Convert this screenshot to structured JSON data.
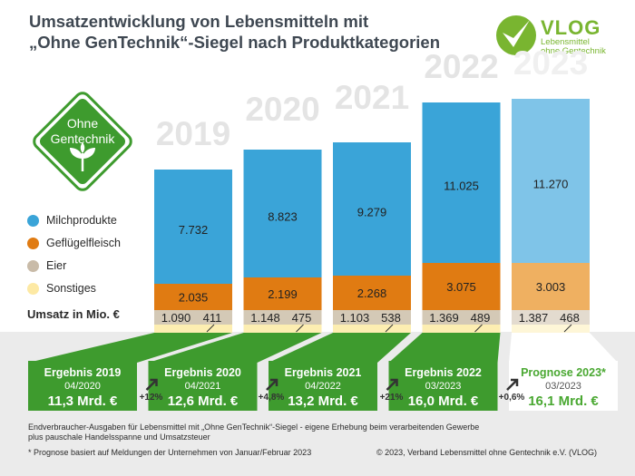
{
  "header": {
    "title_line1": "Umsatzentwicklung von Lebensmitteln mit",
    "title_line2": "„Ohne GenTechnik“-Siegel nach Produktkategorien"
  },
  "logo": {
    "name": "VLOG",
    "sub_line1": "Lebensmittel",
    "sub_line2": "ohne Gentechnik"
  },
  "seal": {
    "line1": "Ohne",
    "line2": "Gentechnik"
  },
  "legend": {
    "items": [
      {
        "label": "Milchprodukte",
        "color": "#3aa4d8"
      },
      {
        "label": "Geflügelfleisch",
        "color": "#e07b12"
      },
      {
        "label": "Eier",
        "color": "#c9bba8"
      },
      {
        "label": "Sonstiges",
        "color": "#fde9a4"
      }
    ],
    "unit_label": "Umsatz in Mio. €"
  },
  "chart_data": {
    "type": "bar",
    "stacked": true,
    "categories": [
      "2019",
      "2020",
      "2021",
      "2022",
      "2023"
    ],
    "series": [
      {
        "name": "Milchprodukte",
        "values": [
          7732,
          8823,
          9279,
          11025,
          11270
        ],
        "labels": [
          "7.732",
          "8.823",
          "9.279",
          "11.025",
          "11.270"
        ]
      },
      {
        "name": "Geflügelfleisch",
        "values": [
          2035,
          2199,
          2268,
          3075,
          3003
        ],
        "labels": [
          "2.035",
          "2.199",
          "2.268",
          "3.075",
          "3.003"
        ]
      },
      {
        "name": "Eier",
        "values": [
          1090,
          1148,
          1103,
          1369,
          1387
        ],
        "labels": [
          "1.090",
          "1.148",
          "1.103",
          "1.369",
          "1.387"
        ]
      },
      {
        "name": "Sonstiges",
        "values": [
          411,
          475,
          538,
          489,
          468
        ],
        "labels": [
          "411",
          "475",
          "538",
          "489",
          "468"
        ]
      }
    ],
    "forecast_category": "2023",
    "ylabel": "Umsatz in Mio. €",
    "colors": {
      "milch": "#3aa4d8",
      "gefluegel": "#e07b12",
      "eier": "#d4c9b6",
      "sonstiges": "#fdeeb1"
    },
    "forecast_colors": {
      "milch": "#7fc4e8",
      "gefluegel": "#efb061",
      "eier": "#e3dbcf",
      "sonstiges": "#fef6d7"
    }
  },
  "results": [
    {
      "title": "Ergebnis 2019",
      "date": "04/2020",
      "value": "11,3 Mrd. €"
    },
    {
      "title": "Ergebnis 2020",
      "date": "04/2021",
      "value": "12,6 Mrd. €"
    },
    {
      "title": "Ergebnis 2021",
      "date": "04/2022",
      "value": "13,2 Mrd. €"
    },
    {
      "title": "Ergebnis 2022",
      "date": "03/2023",
      "value": "16,0 Mrd. €"
    },
    {
      "title": "Prognose 2023*",
      "date": "03/2023",
      "value": "16,1 Mrd. €"
    }
  ],
  "growth": [
    "+12%",
    "+4,8%",
    "+21%",
    "+0,6%"
  ],
  "footer": {
    "note_line1": "Endverbraucher-Ausgaben für Lebensmittel mit „Ohne GenTechnik“-Siegel - eigene Erhebung beim verarbeitenden Gewerbe",
    "note_line2": "plus pauschale Handelsspanne und Umsatzsteuer",
    "footnote": "*  Prognose basiert auf Meldungen der Unternehmen von Januar/Februar 2023",
    "copyright": "© 2023, Verband Lebensmittel ohne Gentechnik e.V. (VLOG)"
  },
  "brand_colors": {
    "green": "#3e9b2e",
    "green_light": "#79b530",
    "text": "#3f4852"
  }
}
